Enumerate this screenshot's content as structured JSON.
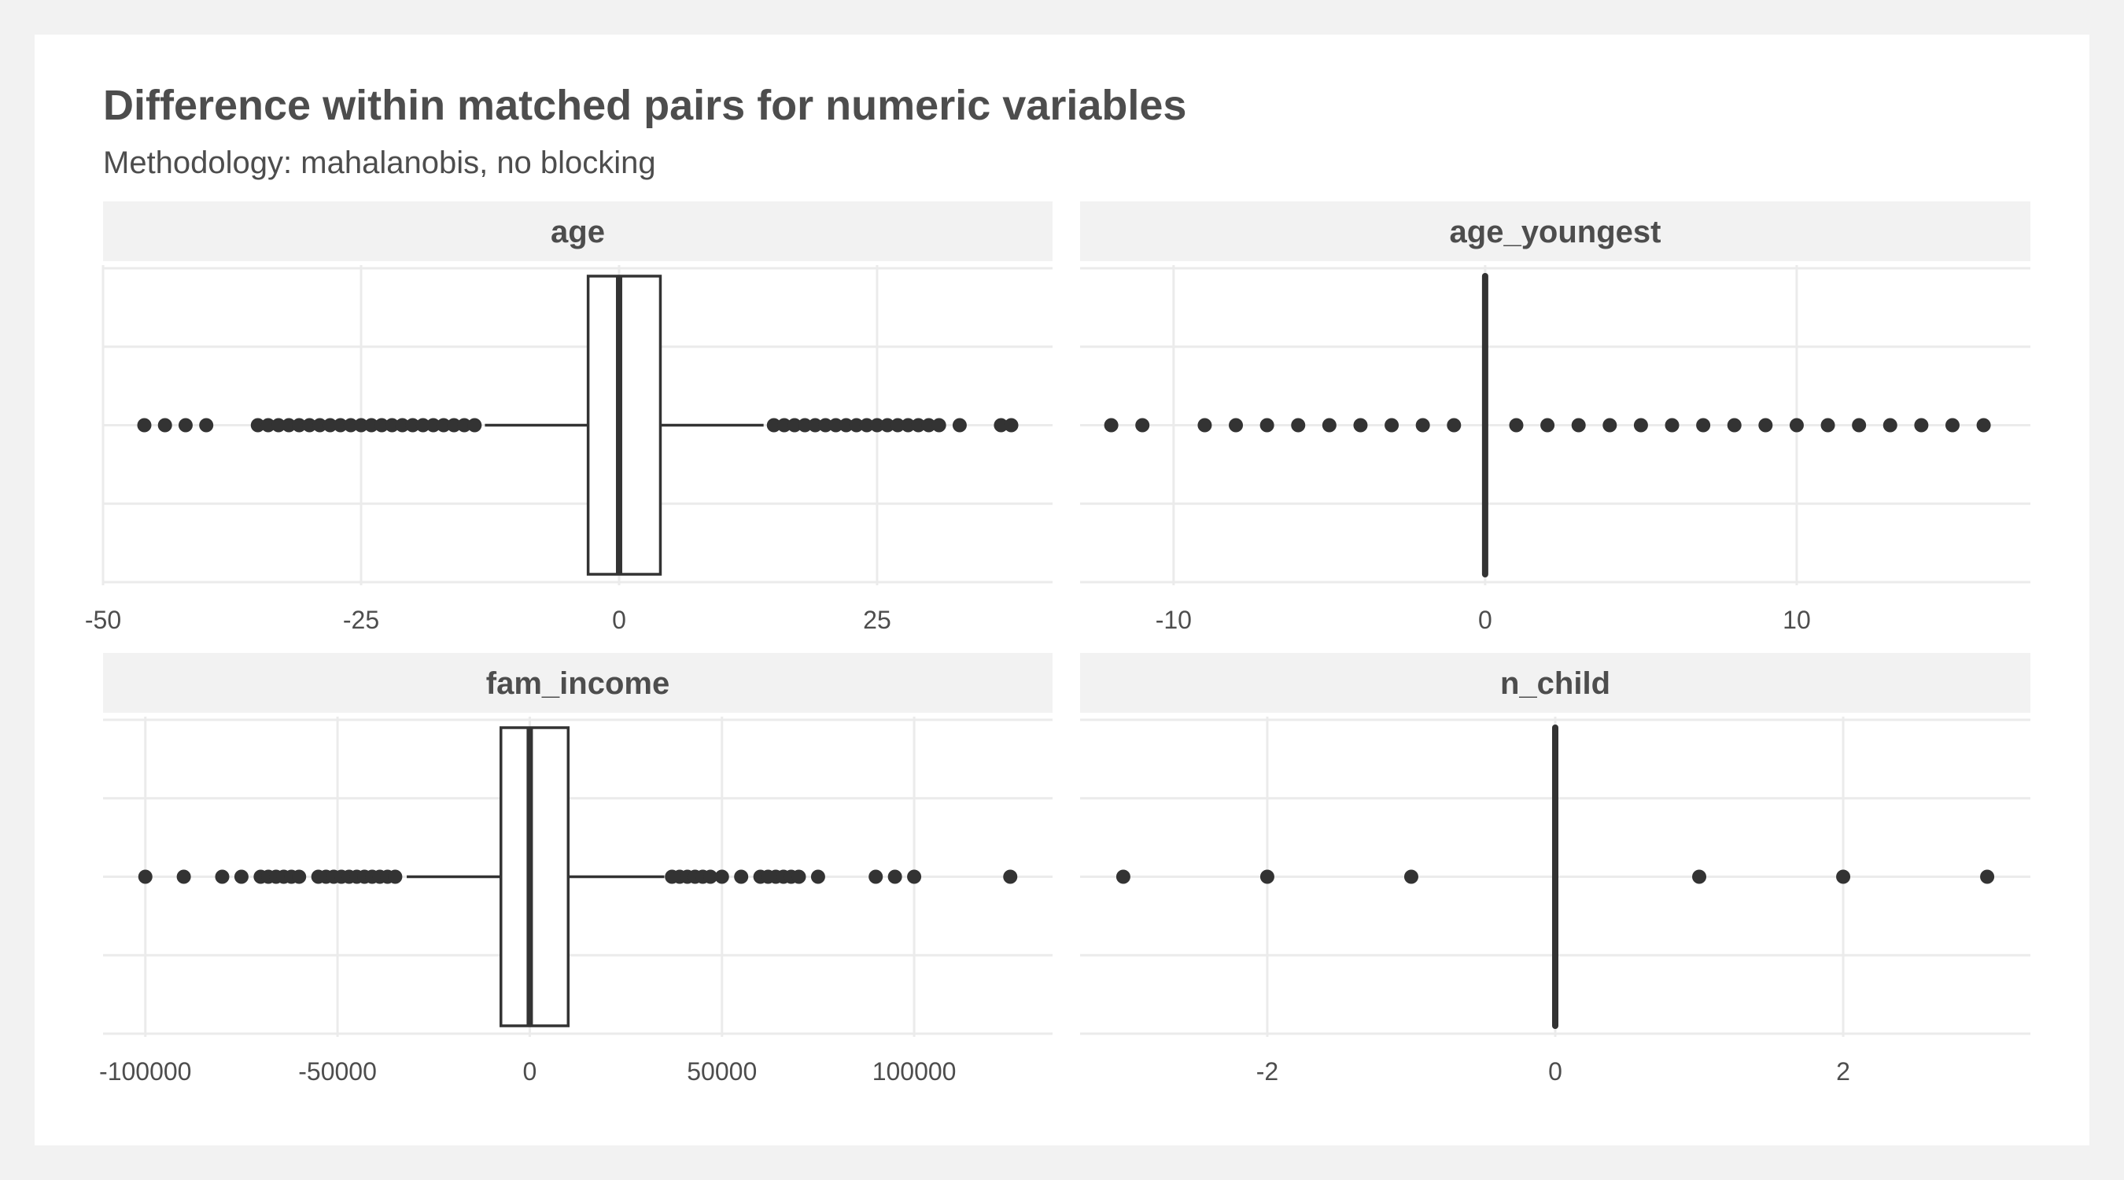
{
  "title": "Difference within matched pairs for numeric variables",
  "subtitle": "Methodology: mahalanobis, no blocking",
  "colors": {
    "page_background": "#f2f2f2",
    "panel_background": "#ffffff",
    "strip_background": "#f2f2f2",
    "grid": "#ebebeb",
    "mark": "#333333",
    "text": "#4d4d4d"
  },
  "chart_data": [
    {
      "type": "boxplot",
      "facet": "age",
      "xlim": [
        -50,
        42
      ],
      "ticks": [
        -50,
        -25,
        0,
        25
      ],
      "tick_labels": [
        "-50",
        "-25",
        "0",
        "25"
      ],
      "box": {
        "whisker_low": -13,
        "q1": -3,
        "median": 0,
        "q3": 4,
        "whisker_high": 14
      },
      "outliers": [
        -46,
        -44,
        -42,
        -40,
        -35,
        -34,
        -33,
        -32,
        -31,
        -30,
        -29,
        -28,
        -27,
        -26,
        -25,
        -24,
        -23,
        -22,
        -21,
        -20,
        -19,
        -18,
        -17,
        -16,
        -15,
        -14,
        15,
        16,
        17,
        18,
        19,
        20,
        21,
        22,
        23,
        24,
        25,
        26,
        27,
        28,
        29,
        30,
        31,
        33,
        37,
        38
      ]
    },
    {
      "type": "boxplot",
      "facet": "age_youngest",
      "xlim": [
        -13,
        17.5
      ],
      "ticks": [
        -10,
        0,
        10
      ],
      "tick_labels": [
        "-10",
        "0",
        "10"
      ],
      "box": {
        "whisker_low": 0,
        "q1": 0,
        "median": 0,
        "q3": 0,
        "whisker_high": 0
      },
      "outliers": [
        -12,
        -11,
        -9,
        -8,
        -7,
        -6,
        -5,
        -4,
        -3,
        -2,
        -1,
        1,
        2,
        3,
        4,
        5,
        6,
        7,
        8,
        9,
        10,
        11,
        12,
        13,
        14,
        15,
        16
      ]
    },
    {
      "type": "boxplot",
      "facet": "fam_income",
      "xlim": [
        -111000,
        136000
      ],
      "ticks": [
        -100000,
        -50000,
        0,
        50000,
        100000
      ],
      "tick_labels": [
        "-100000",
        "-50000",
        "0",
        "50000",
        "100000"
      ],
      "box": {
        "whisker_low": -32000,
        "q1": -7500,
        "median": 0,
        "q3": 10000,
        "whisker_high": 35000
      },
      "outliers": [
        -100000,
        -90000,
        -80000,
        -75000,
        -70000,
        -68000,
        -66000,
        -64000,
        -62000,
        -60000,
        -55000,
        -53000,
        -51000,
        -49000,
        -47000,
        -45000,
        -43000,
        -41000,
        -39000,
        -37000,
        -35000,
        37000,
        39000,
        41000,
        43000,
        45000,
        47000,
        50000,
        55000,
        60000,
        62000,
        64000,
        66000,
        68000,
        70000,
        75000,
        90000,
        95000,
        100000,
        125000
      ]
    },
    {
      "type": "boxplot",
      "facet": "n_child",
      "xlim": [
        -3.3,
        3.3
      ],
      "ticks": [
        -2,
        0,
        2
      ],
      "tick_labels": [
        "-2",
        "0",
        "2"
      ],
      "box": {
        "whisker_low": 0,
        "q1": 0,
        "median": 0,
        "q3": 0,
        "whisker_high": 0
      },
      "outliers": [
        -3,
        -2,
        -1,
        1,
        2,
        3
      ]
    }
  ]
}
